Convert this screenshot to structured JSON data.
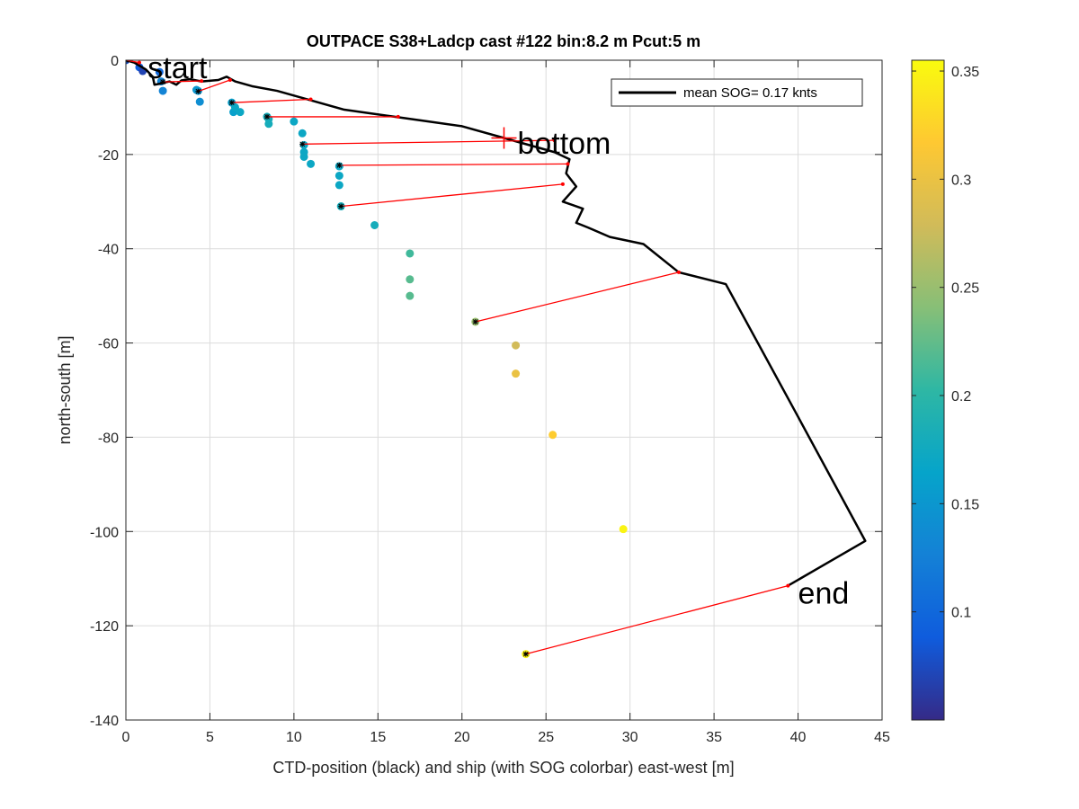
{
  "chart_data": {
    "type": "scatter",
    "title": "OUTPACE S38+Ladcp cast #122 bin:8.2 m  Pcut:5 m",
    "xlabel": "CTD-position (black) and ship (with SOG colorbar) east-west [m]",
    "ylabel": "north-south [m]",
    "xlim": [
      0,
      45
    ],
    "ylim": [
      -140,
      0
    ],
    "xticks": [
      0,
      5,
      10,
      15,
      20,
      25,
      30,
      35,
      40,
      45
    ],
    "yticks": [
      0,
      -20,
      -40,
      -60,
      -80,
      -100,
      -120,
      -140
    ],
    "grid": true,
    "legend": {
      "label": "mean SOG=  0.17 knts",
      "position": "top-right"
    },
    "colorbar": {
      "range": [
        0.05,
        0.355
      ],
      "ticks": [
        0.1,
        0.15,
        0.2,
        0.25,
        0.3,
        0.35
      ],
      "tick_labels": [
        "0.1",
        "0.15",
        "0.2",
        "0.25",
        "0.3",
        "0.35"
      ],
      "colormap": [
        "#352a87",
        "#0f5cdd",
        "#1481d6",
        "#06a4ca",
        "#2eb7a4",
        "#87bf77",
        "#d1bb59",
        "#fec832",
        "#f9fb0e"
      ]
    },
    "annotations": [
      {
        "text": "start",
        "x": 1.3,
        "y": -1.5
      },
      {
        "text": "bottom",
        "x": 23.3,
        "y": -17.5
      },
      {
        "text": "end",
        "x": 40,
        "y": -113
      }
    ],
    "bottom_marker": {
      "x": 22.5,
      "y": -16.5
    },
    "series": [
      {
        "name": "mean SOG=  0.17 knts",
        "kind": "ctd",
        "color": "#000000",
        "x": [
          0,
          0.5,
          1.2,
          1.6,
          1.7,
          2.0,
          2.6,
          3.0,
          3.3,
          3.8,
          4.5,
          5.5,
          6.0,
          6.5,
          7.5,
          9.0,
          11.0,
          13.0,
          16.0,
          18.0,
          20.0,
          22.5,
          25.5,
          26.4,
          26.2,
          26.8,
          26.0,
          27.2,
          26.8,
          27.5,
          28.8,
          30.8,
          32.9,
          35.7,
          39.9,
          44.0,
          39.4
        ],
        "y": [
          0,
          -0.5,
          -2.0,
          -3.5,
          -5.2,
          -5.0,
          -4.5,
          -5.2,
          -4.3,
          -4.0,
          -4.5,
          -4.2,
          -3.5,
          -4.5,
          -5.5,
          -6.5,
          -8.5,
          -10.5,
          -12.0,
          -13.0,
          -14.0,
          -16.5,
          -19.5,
          -21.0,
          -24.0,
          -26.8,
          -30.0,
          -31.5,
          -34.5,
          -35.5,
          -37.5,
          -39.0,
          -45.0,
          -47.5,
          -75.0,
          -102.0,
          -111.5
        ]
      },
      {
        "name": "",
        "kind": "ship",
        "x": [
          0,
          0.8,
          1.0,
          2.0,
          2.1,
          2.2,
          4.2,
          4.4,
          4.3,
          6.3,
          6.4,
          6.5,
          6.8,
          8.4,
          8.5,
          8.5,
          10.0,
          10.5,
          10.6,
          10.6,
          10.6,
          11.0,
          12.7,
          12.7,
          12.7,
          12.7,
          12.8,
          14.8,
          16.9,
          16.9,
          16.9,
          20.8,
          23.2,
          23.2,
          25.4,
          29.6,
          23.8
        ],
        "y": [
          0,
          -1.5,
          -2.3,
          -2.5,
          -4.5,
          -6.5,
          -6.3,
          -8.8,
          -6.5,
          -9.0,
          -11.0,
          -10.0,
          -11.0,
          -12.0,
          -13.5,
          -12.5,
          -13.0,
          -15.5,
          -18.0,
          -19.5,
          -20.5,
          -22.0,
          -22.5,
          -24.5,
          -26.5,
          -22.5,
          -31.0,
          -35.0,
          -41.0,
          -46.5,
          -50.0,
          -55.5,
          -60.5,
          -66.5,
          -79.5,
          -99.5,
          -126.0
        ],
        "sog": [
          0.08,
          0.09,
          0.07,
          0.1,
          0.13,
          0.13,
          0.15,
          0.14,
          0.15,
          0.16,
          0.16,
          0.17,
          0.17,
          0.18,
          0.18,
          0.18,
          0.17,
          0.17,
          0.17,
          0.17,
          0.17,
          0.17,
          0.17,
          0.17,
          0.17,
          0.17,
          0.18,
          0.18,
          0.21,
          0.22,
          0.22,
          0.25,
          0.28,
          0.3,
          0.32,
          0.35,
          0.35
        ]
      }
    ],
    "connections": {
      "name": "",
      "kind": "ctd-ship-links",
      "color": "#ff0000",
      "pairs": [
        {
          "ctd": [
            0.8,
            -0.5
          ],
          "ship": [
            0,
            0
          ]
        },
        {
          "ctd": [
            4.5,
            -4.4
          ],
          "ship": [
            2.2,
            -4.6
          ]
        },
        {
          "ctd": [
            6.2,
            -4.2
          ],
          "ship": [
            4.3,
            -6.6
          ]
        },
        {
          "ctd": [
            11.0,
            -8.3
          ],
          "ship": [
            6.3,
            -9.0
          ]
        },
        {
          "ctd": [
            16.2,
            -12.0
          ],
          "ship": [
            8.4,
            -12.0
          ]
        },
        {
          "ctd": [
            25.5,
            -17.0
          ],
          "ship": [
            10.5,
            -17.8
          ]
        },
        {
          "ctd": [
            26.3,
            -22.0
          ],
          "ship": [
            12.7,
            -22.3
          ]
        },
        {
          "ctd": [
            26.0,
            -26.3
          ],
          "ship": [
            12.8,
            -31.0
          ]
        },
        {
          "ctd": [
            32.9,
            -45.0
          ],
          "ship": [
            20.8,
            -55.5
          ]
        },
        {
          "ctd": [
            39.4,
            -111.5
          ],
          "ship": [
            23.8,
            -126.0
          ]
        }
      ]
    }
  }
}
